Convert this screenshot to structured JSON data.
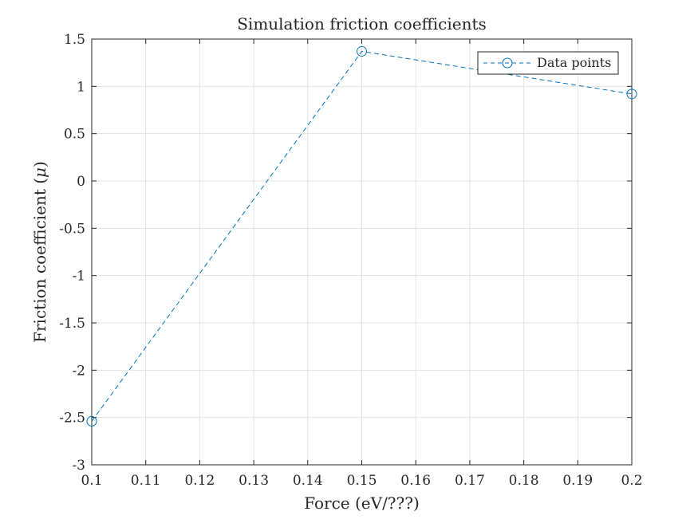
{
  "chart_data": {
    "type": "line",
    "title": "Simulation friction coefficients",
    "xlabel": "Force (eV/???)",
    "ylabel_text": "Friction coefficient (",
    "ylabel_symbol": "μ",
    "ylabel_close": ")",
    "xlim": [
      0.1,
      0.2
    ],
    "ylim": [
      -3,
      1.5
    ],
    "x_ticks": [
      0.1,
      0.11,
      0.12,
      0.13,
      0.14,
      0.15,
      0.16,
      0.17,
      0.18,
      0.19,
      0.2
    ],
    "x_tick_labels": [
      "0.1",
      "0.11",
      "0.12",
      "0.13",
      "0.14",
      "0.15",
      "0.16",
      "0.17",
      "0.18",
      "0.19",
      "0.2"
    ],
    "y_ticks": [
      -3,
      -2.5,
      -2,
      -1.5,
      -1,
      -0.5,
      0,
      0.5,
      1,
      1.5
    ],
    "y_tick_labels": [
      "-3",
      "-2.5",
      "-2",
      "-1.5",
      "-1",
      "-0.5",
      "0",
      "0.5",
      "1",
      "1.5"
    ],
    "grid": true,
    "legend_position": "top-right",
    "series": [
      {
        "name": "Data points",
        "x": [
          0.1,
          0.15,
          0.2
        ],
        "y": [
          -2.54,
          1.37,
          0.92
        ],
        "color": "#0072BD",
        "line_style": "dashed",
        "marker": "circle"
      }
    ]
  }
}
